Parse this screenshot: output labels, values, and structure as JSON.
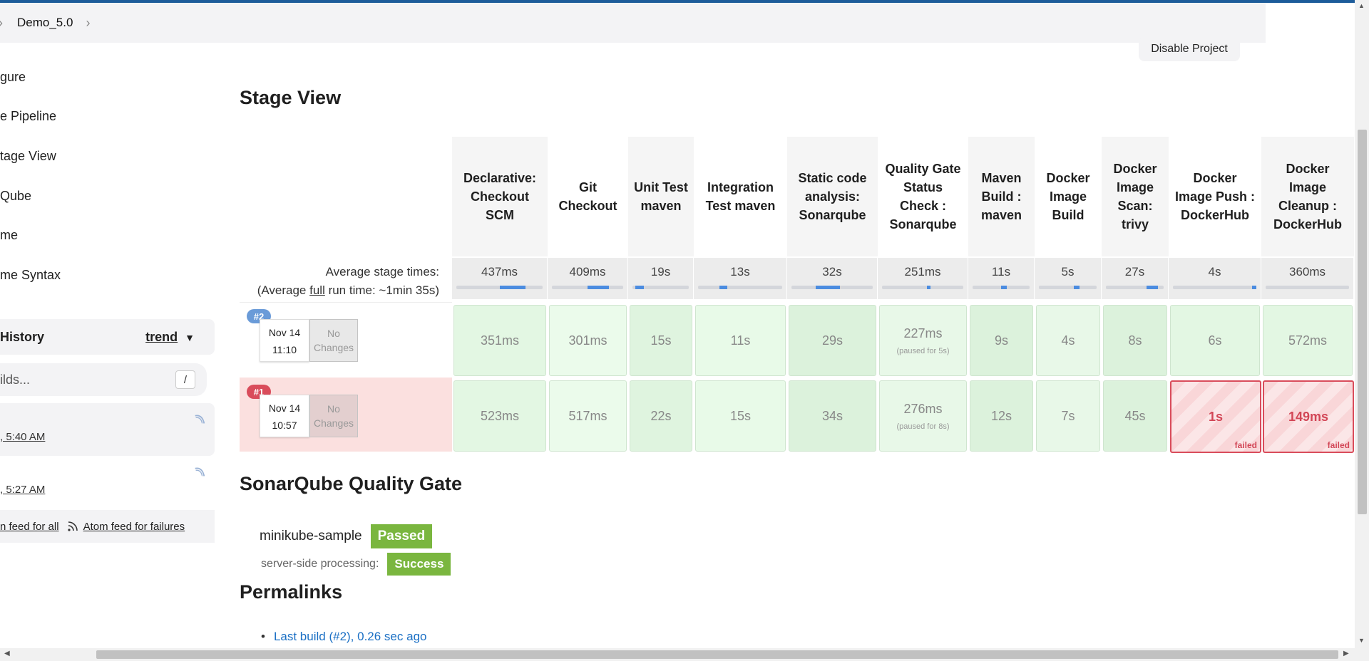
{
  "breadcrumb": {
    "current": "Demo_5.0"
  },
  "header": {
    "disable_label": "Disable Project"
  },
  "sidebar": {
    "items": [
      "gure",
      "e Pipeline",
      "tage View",
      "Qube",
      "me",
      "me Syntax"
    ],
    "history_title": "History",
    "trend_label": "trend",
    "filter_placeholder": "ilds...",
    "filter_shortcut": "/",
    "builds": [
      {
        "time": ", 5:40 AM"
      },
      {
        "time": ", 5:27 AM"
      }
    ],
    "feed_all": "n feed for all",
    "feed_failures": "Atom feed for failures"
  },
  "stage_view": {
    "title": "Stage View",
    "avg_label": "Average stage times:",
    "avg_full_prefix": "(Average ",
    "avg_full_link": "full",
    "avg_full_suffix": " run time: ~1min 35s)",
    "stages": [
      {
        "name": "Declarative: Checkout SCM",
        "avg": "437ms"
      },
      {
        "name": "Git Checkout",
        "avg": "409ms"
      },
      {
        "name": "Unit Test maven",
        "avg": "19s"
      },
      {
        "name": "Integration Test maven",
        "avg": "13s"
      },
      {
        "name": "Static code analysis: Sonarqube",
        "avg": "32s"
      },
      {
        "name": "Quality Gate Status Check : Sonarqube",
        "avg": "251ms"
      },
      {
        "name": "Maven Build : maven",
        "avg": "11s"
      },
      {
        "name": "Docker Image Build",
        "avg": "5s"
      },
      {
        "name": "Docker Image Scan: trivy",
        "avg": "27s"
      },
      {
        "name": "Docker Image Push : DockerHub",
        "avg": "4s"
      },
      {
        "name": "Docker Image Cleanup : DockerHub",
        "avg": "360ms"
      }
    ],
    "runs": [
      {
        "badge": "#2",
        "date": "Nov 14",
        "time": "11:10",
        "changes": "No Changes",
        "status": "success",
        "cells": [
          {
            "value": "351ms"
          },
          {
            "value": "301ms"
          },
          {
            "value": "15s"
          },
          {
            "value": "11s"
          },
          {
            "value": "29s"
          },
          {
            "value": "227ms",
            "note": "(paused for 5s)"
          },
          {
            "value": "9s"
          },
          {
            "value": "4s"
          },
          {
            "value": "8s"
          },
          {
            "value": "6s"
          },
          {
            "value": "572ms"
          }
        ]
      },
      {
        "badge": "#1",
        "date": "Nov 14",
        "time": "10:57",
        "changes": "No Changes",
        "status": "failed",
        "cells": [
          {
            "value": "523ms"
          },
          {
            "value": "517ms"
          },
          {
            "value": "22s"
          },
          {
            "value": "15s"
          },
          {
            "value": "34s"
          },
          {
            "value": "276ms",
            "note": "(paused for 8s)"
          },
          {
            "value": "12s"
          },
          {
            "value": "7s"
          },
          {
            "value": "45s"
          },
          {
            "value": "1s",
            "failed": "failed"
          },
          {
            "value": "149ms",
            "failed": "failed"
          }
        ]
      }
    ]
  },
  "sonar": {
    "title": "SonarQube Quality Gate",
    "project": "minikube-sample",
    "status": "Passed",
    "processing_label": "server-side processing:",
    "processing_status": "Success"
  },
  "permalinks": {
    "title": "Permalinks",
    "items": [
      "Last build (#2), 0.26 sec ago"
    ]
  },
  "colors": {
    "accent": "#1d5c9a",
    "success": "#7ab63f",
    "fail": "#d24656",
    "link": "#1a6fc4"
  }
}
